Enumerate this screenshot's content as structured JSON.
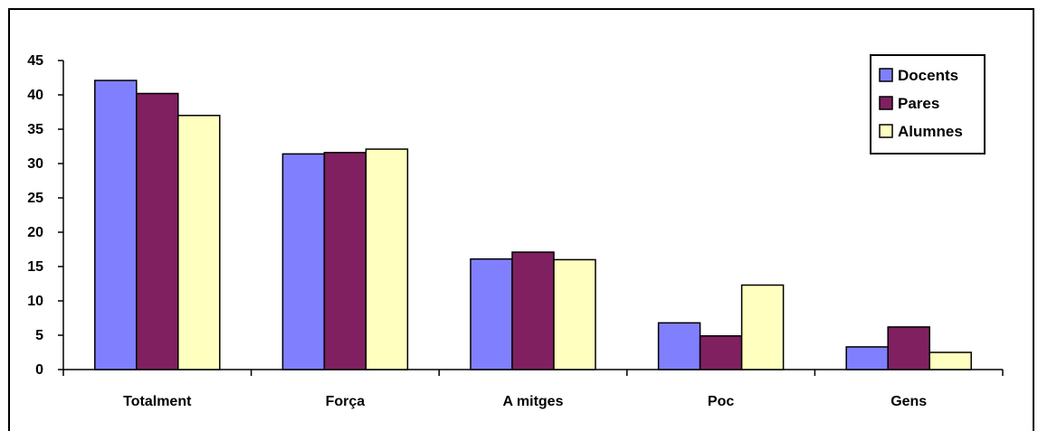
{
  "chart_data": {
    "type": "bar",
    "categories": [
      "Totalment",
      "Força",
      "A mitges",
      "Poc",
      "Gens"
    ],
    "series": [
      {
        "name": "Docents",
        "color": "#8080ff",
        "values": [
          42.1,
          31.4,
          16.1,
          6.8,
          3.3
        ]
      },
      {
        "name": "Pares",
        "color": "#802060",
        "values": [
          40.2,
          31.6,
          17.1,
          4.9,
          6.2
        ]
      },
      {
        "name": "Alumnes",
        "color": "#ffffc0",
        "values": [
          37.0,
          32.1,
          16.0,
          12.3,
          2.5
        ]
      }
    ],
    "title": "",
    "xlabel": "",
    "ylabel": "",
    "ylim": [
      0,
      45
    ],
    "yticks": [
      "0",
      "5",
      "10",
      "15",
      "20",
      "25",
      "30",
      "35",
      "40",
      "45"
    ],
    "grid": false,
    "legend": "top-right"
  }
}
